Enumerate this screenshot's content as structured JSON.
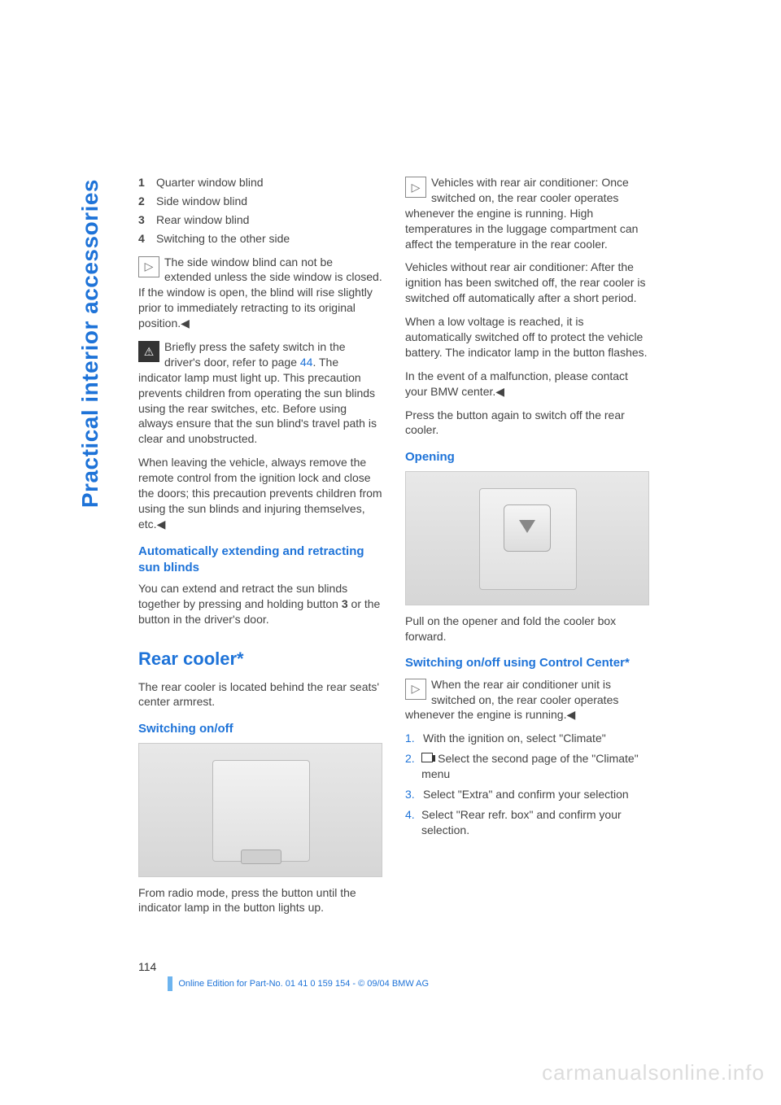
{
  "side_title": "Practical interior accessories",
  "left": {
    "numbered": [
      {
        "n": "1",
        "t": "Quarter window blind"
      },
      {
        "n": "2",
        "t": "Side window blind"
      },
      {
        "n": "3",
        "t": "Rear window blind"
      },
      {
        "n": "4",
        "t": "Switching to the other side"
      }
    ],
    "note1": "The side window blind can not be extended unless the side window is closed. If the window is open, the blind will rise slightly prior to immediately retracting to its original position.◀",
    "warn_a": "Briefly press the safety switch in the driver's door, refer to page ",
    "warn_link": "44",
    "warn_b": ". The indicator lamp must light up. This precaution prevents children from operating the sun blinds using the rear switches, etc. Before using always ensure that the sun blind's travel path is clear and unobstructed.",
    "warn_c": "When leaving the vehicle, always remove the remote control from the ignition lock and close the doors; this precaution prevents children from using the sun blinds and injuring themselves, etc.◀",
    "h3_auto": "Automatically extending and retracting sun blinds",
    "auto_a": "You can extend and retract the sun blinds together by pressing and holding button ",
    "auto_bold": "3",
    "auto_b": " or the button in the driver's door.",
    "h2_cooler": "Rear cooler*",
    "cooler_intro": "The rear cooler is located behind the rear seats' center armrest.",
    "h3_switch": "Switching on/off",
    "switch_caption": "From radio mode, press the button until the indicator lamp in the button lights up."
  },
  "right": {
    "note2": "Vehicles with rear air conditioner: Once switched on, the rear cooler operates whenever the engine is running. High temperatures in the luggage compartment can affect the temperature in the rear cooler.",
    "p_without": "Vehicles without rear air conditioner: After the ignition has been switched off, the rear cooler is switched off automatically after a short period.",
    "p_lowv": "When a low voltage is reached, it is automatically switched off to protect the vehicle battery. The indicator lamp in the button flashes.",
    "p_malf": "In the event of a malfunction, please contact your BMW center.◀",
    "p_press": "Press the button again to switch off the rear cooler.",
    "h3_open": "Opening",
    "open_caption": "Pull on the opener and fold the cooler box forward.",
    "h3_cc": "Switching on/off using Control Center*",
    "note3": "When the rear air conditioner unit is switched on, the rear cooler operates whenever the engine is running.◀",
    "steps": [
      {
        "n": "1.",
        "t": "With the ignition on, select \"Climate\"",
        "icon": false
      },
      {
        "n": "2.",
        "t": "Select the second page of the \"Climate\" menu",
        "icon": true
      },
      {
        "n": "3.",
        "t": "Select \"Extra\" and confirm your selection",
        "icon": false
      },
      {
        "n": "4.",
        "t": "Select \"Rear refr. box\" and confirm your selection.",
        "icon": false
      }
    ]
  },
  "footer": {
    "page": "114",
    "text": "Online Edition for Part-No. 01 41 0 159 154 - © 09/04 BMW AG"
  },
  "watermark": "carmanualsonline.info"
}
